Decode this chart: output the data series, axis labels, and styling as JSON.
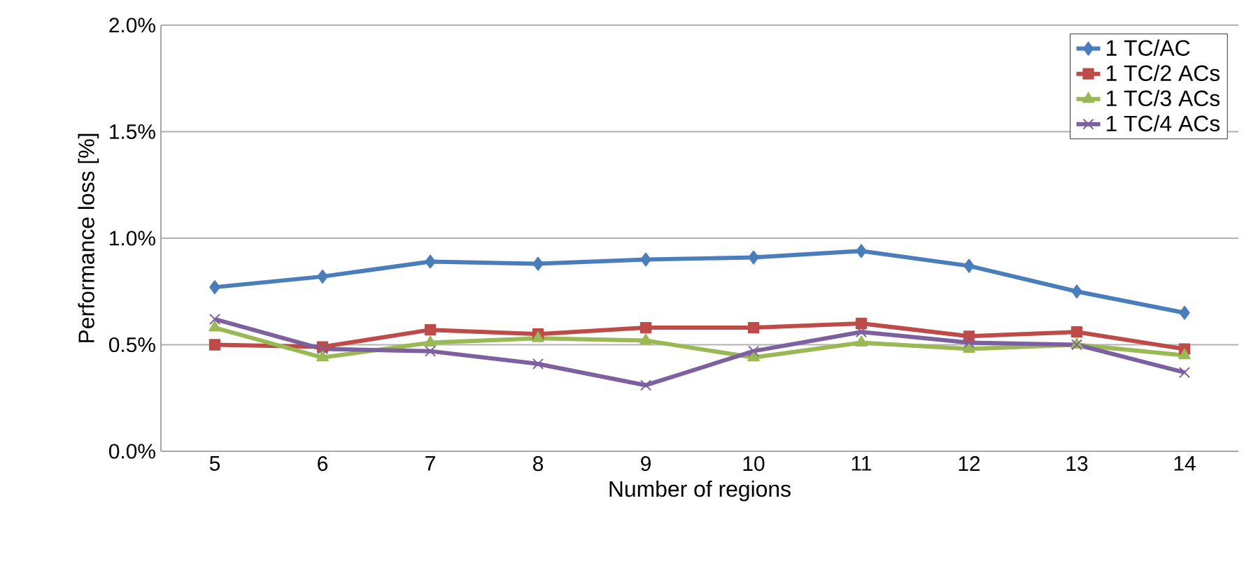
{
  "chart_data": {
    "type": "line",
    "xlabel": "Number of regions",
    "ylabel": "Performance loss [%]",
    "categories": [
      "5",
      "6",
      "7",
      "8",
      "9",
      "10",
      "11",
      "12",
      "13",
      "14"
    ],
    "series": [
      {
        "name": "1 TC/AC",
        "color": "#4a7ebb",
        "marker": "diamond",
        "values": [
          0.77,
          0.82,
          0.89,
          0.88,
          0.9,
          0.91,
          0.94,
          0.87,
          0.75,
          0.65
        ]
      },
      {
        "name": "1 TC/2 ACs",
        "color": "#be4b48",
        "marker": "square",
        "values": [
          0.5,
          0.49,
          0.57,
          0.55,
          0.58,
          0.58,
          0.6,
          0.54,
          0.56,
          0.48
        ]
      },
      {
        "name": "1 TC/3 ACs",
        "color": "#98b954",
        "marker": "triangle",
        "values": [
          0.58,
          0.44,
          0.51,
          0.53,
          0.52,
          0.44,
          0.51,
          0.48,
          0.5,
          0.45
        ]
      },
      {
        "name": "1 TC/4 ACs",
        "color": "#7d60a0",
        "marker": "cross",
        "values": [
          0.62,
          0.48,
          0.47,
          0.41,
          0.31,
          0.47,
          0.56,
          0.51,
          0.5,
          0.37
        ]
      }
    ],
    "ylim": [
      0,
      2
    ],
    "yticks": [
      {
        "value": 0,
        "label": "0.0%"
      },
      {
        "value": 0.5,
        "label": "0.5%"
      },
      {
        "value": 1,
        "label": "1.0%"
      },
      {
        "value": 1.5,
        "label": "1.5%"
      },
      {
        "value": 2,
        "label": "2.0%"
      }
    ],
    "grid": "y",
    "legend": "top right",
    "line_style": "solid"
  }
}
